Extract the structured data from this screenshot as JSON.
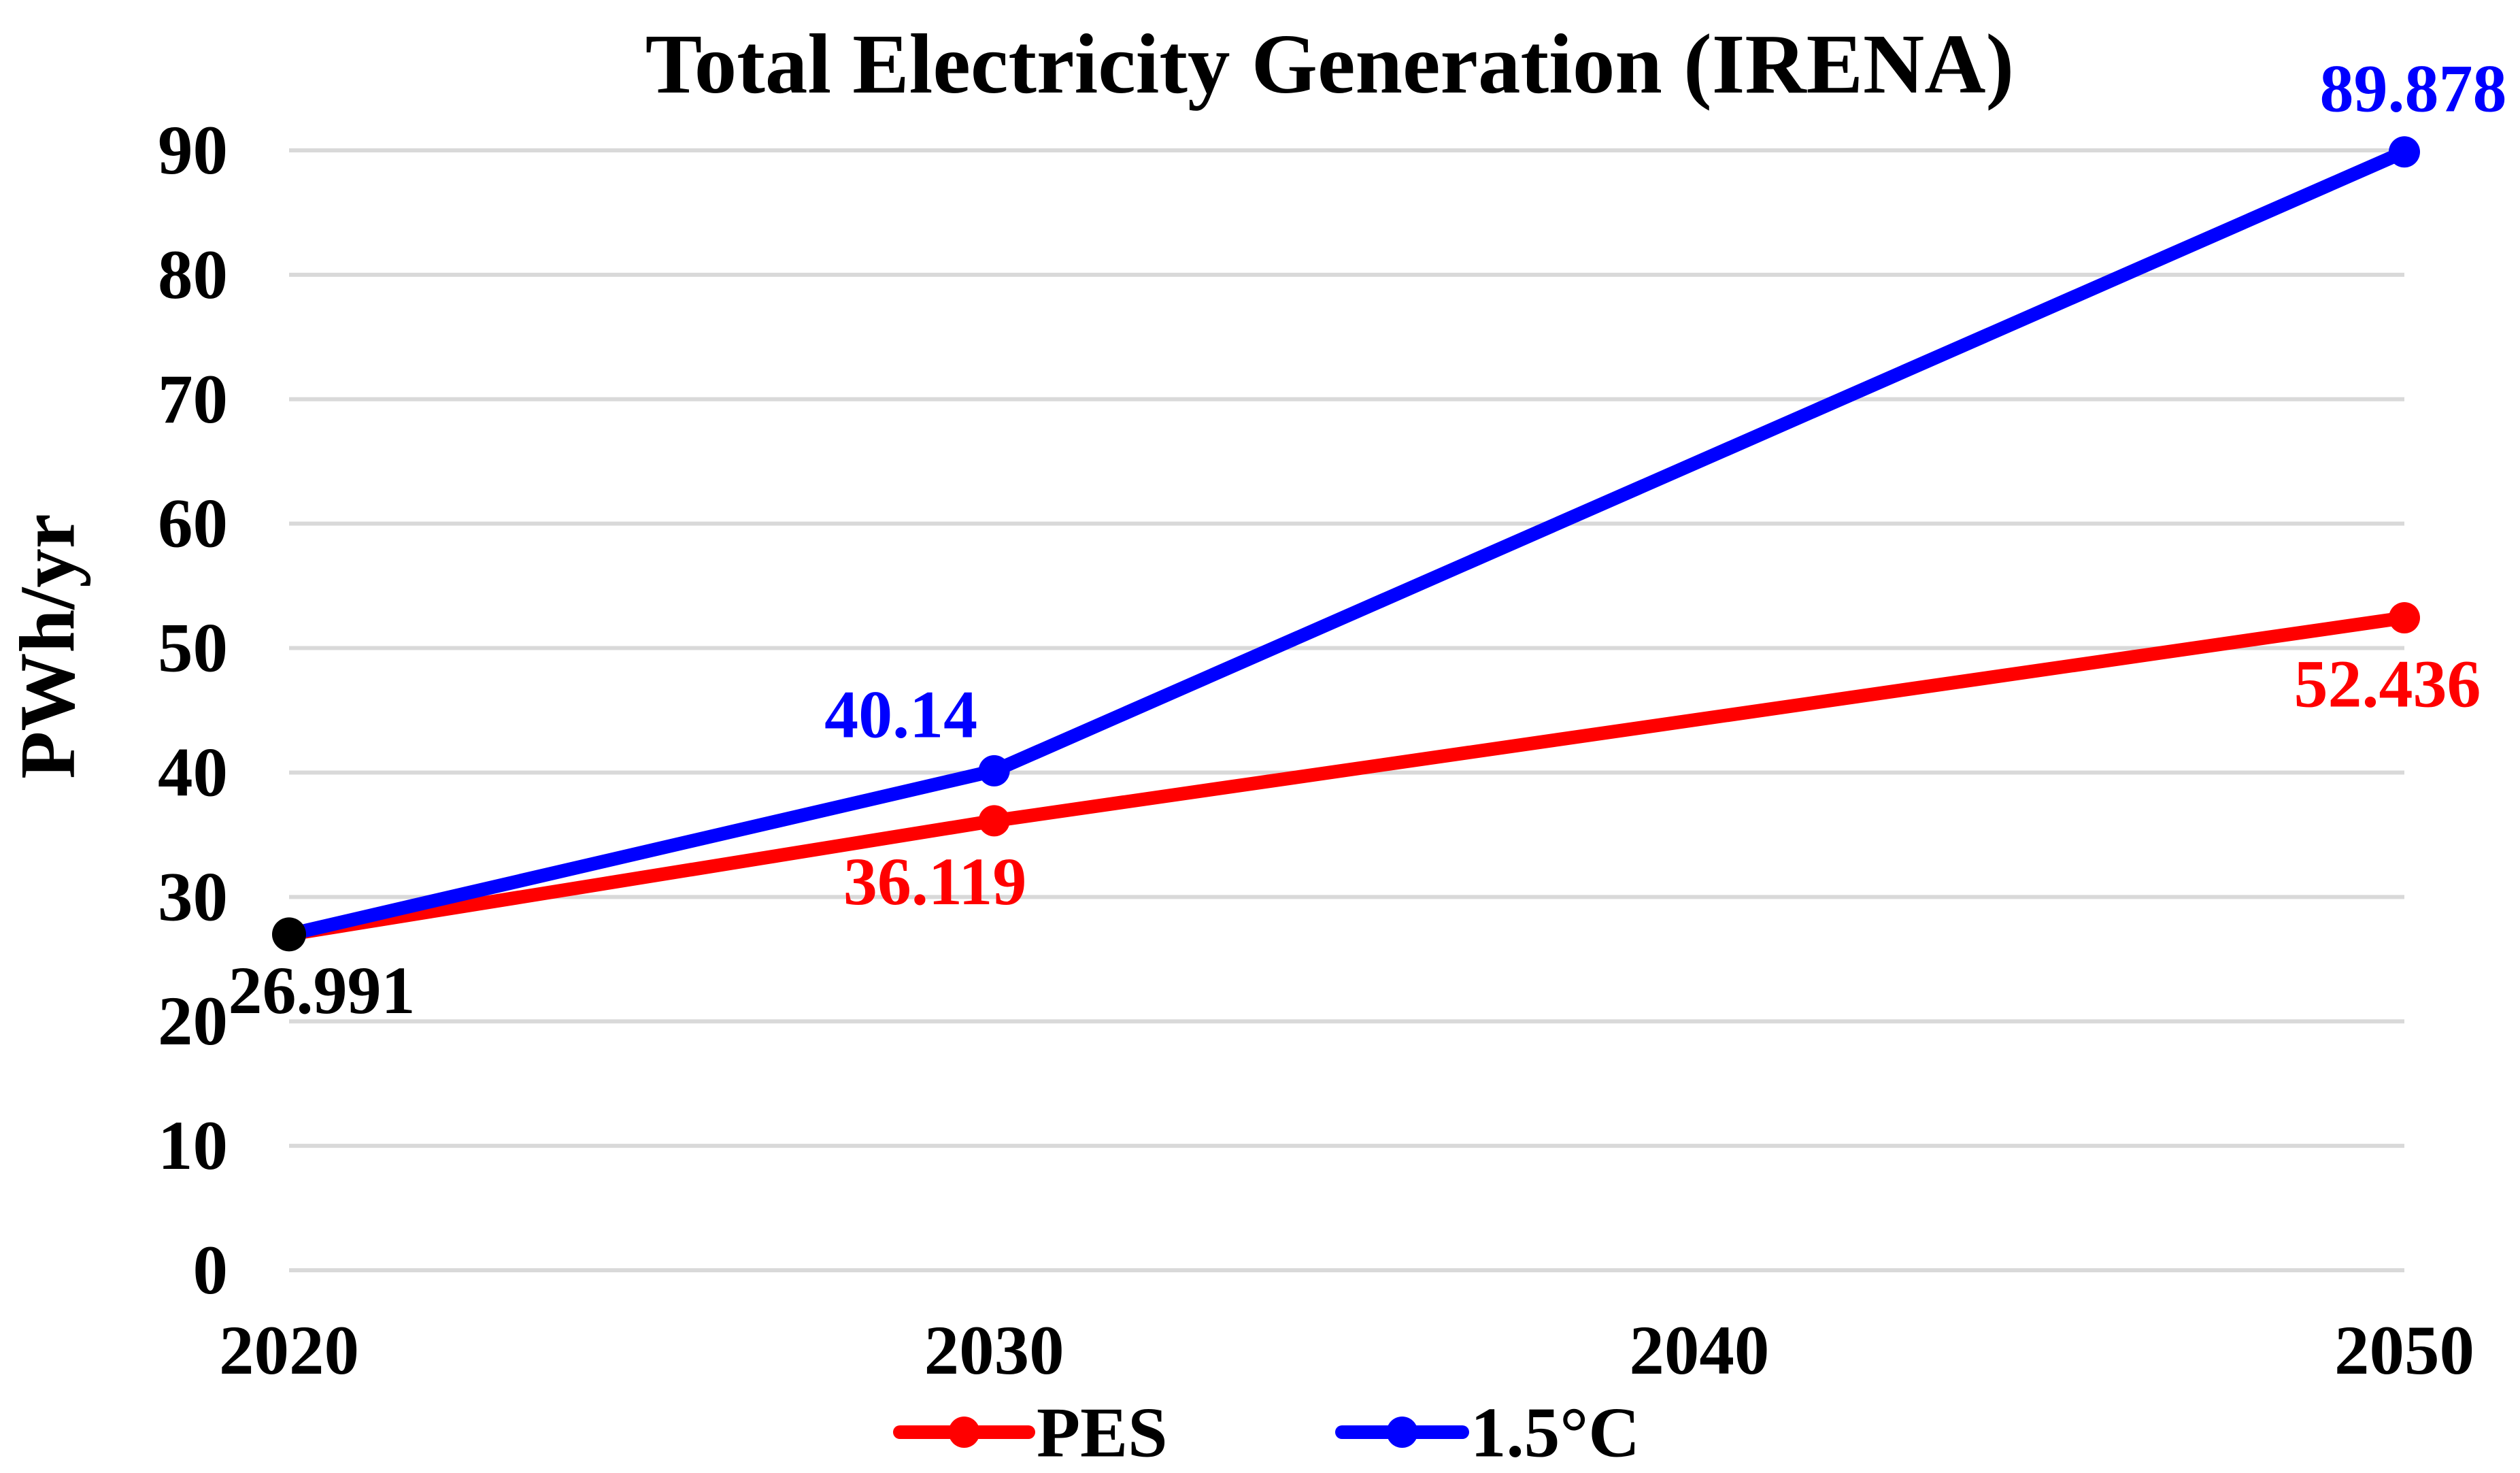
{
  "title": "Total Electricity Generation (IRENA)",
  "y_axis": {
    "label": "PWh/yr",
    "ticks": [
      "0",
      "10",
      "20",
      "30",
      "40",
      "50",
      "60",
      "70",
      "80",
      "90"
    ]
  },
  "x_axis": {
    "ticks": [
      "2020",
      "2030",
      "2040",
      "2050"
    ]
  },
  "legend": {
    "items": [
      {
        "label": "PES",
        "color": "#FF0000"
      },
      {
        "label": "1.5°C",
        "color": "#0000FF"
      }
    ]
  },
  "colors": {
    "pes_line": "#FF0000",
    "one_five_c_line": "#0000FF",
    "start_marker": "#000000",
    "gridline": "#D9D9D9",
    "text": "#000000",
    "background": "#FFFFFF"
  },
  "chart_data": {
    "type": "line",
    "title": "Total Electricity Generation (IRENA)",
    "xlabel": "",
    "ylabel": "PWh/yr",
    "x": [
      2020,
      2030,
      2050
    ],
    "x_axis_ticks": [
      2020,
      2030,
      2040,
      2050
    ],
    "ylim": [
      0,
      90
    ],
    "ytick_step": 10,
    "grid": "horizontal-only",
    "legend_position": "bottom-center",
    "series": [
      {
        "name": "PES",
        "color": "#FF0000",
        "values": [
          26.991,
          36.119,
          52.436
        ],
        "point_labels": [
          "26.991",
          "36.119",
          "52.436"
        ]
      },
      {
        "name": "1.5°C",
        "color": "#0000FF",
        "values": [
          26.991,
          40.14,
          89.878
        ],
        "point_labels": [
          "26.991",
          "40.14",
          "89.878"
        ]
      }
    ],
    "shared_start_point": {
      "x": 2020,
      "value": 26.991,
      "label": "26.991",
      "marker_color": "#000000"
    }
  }
}
